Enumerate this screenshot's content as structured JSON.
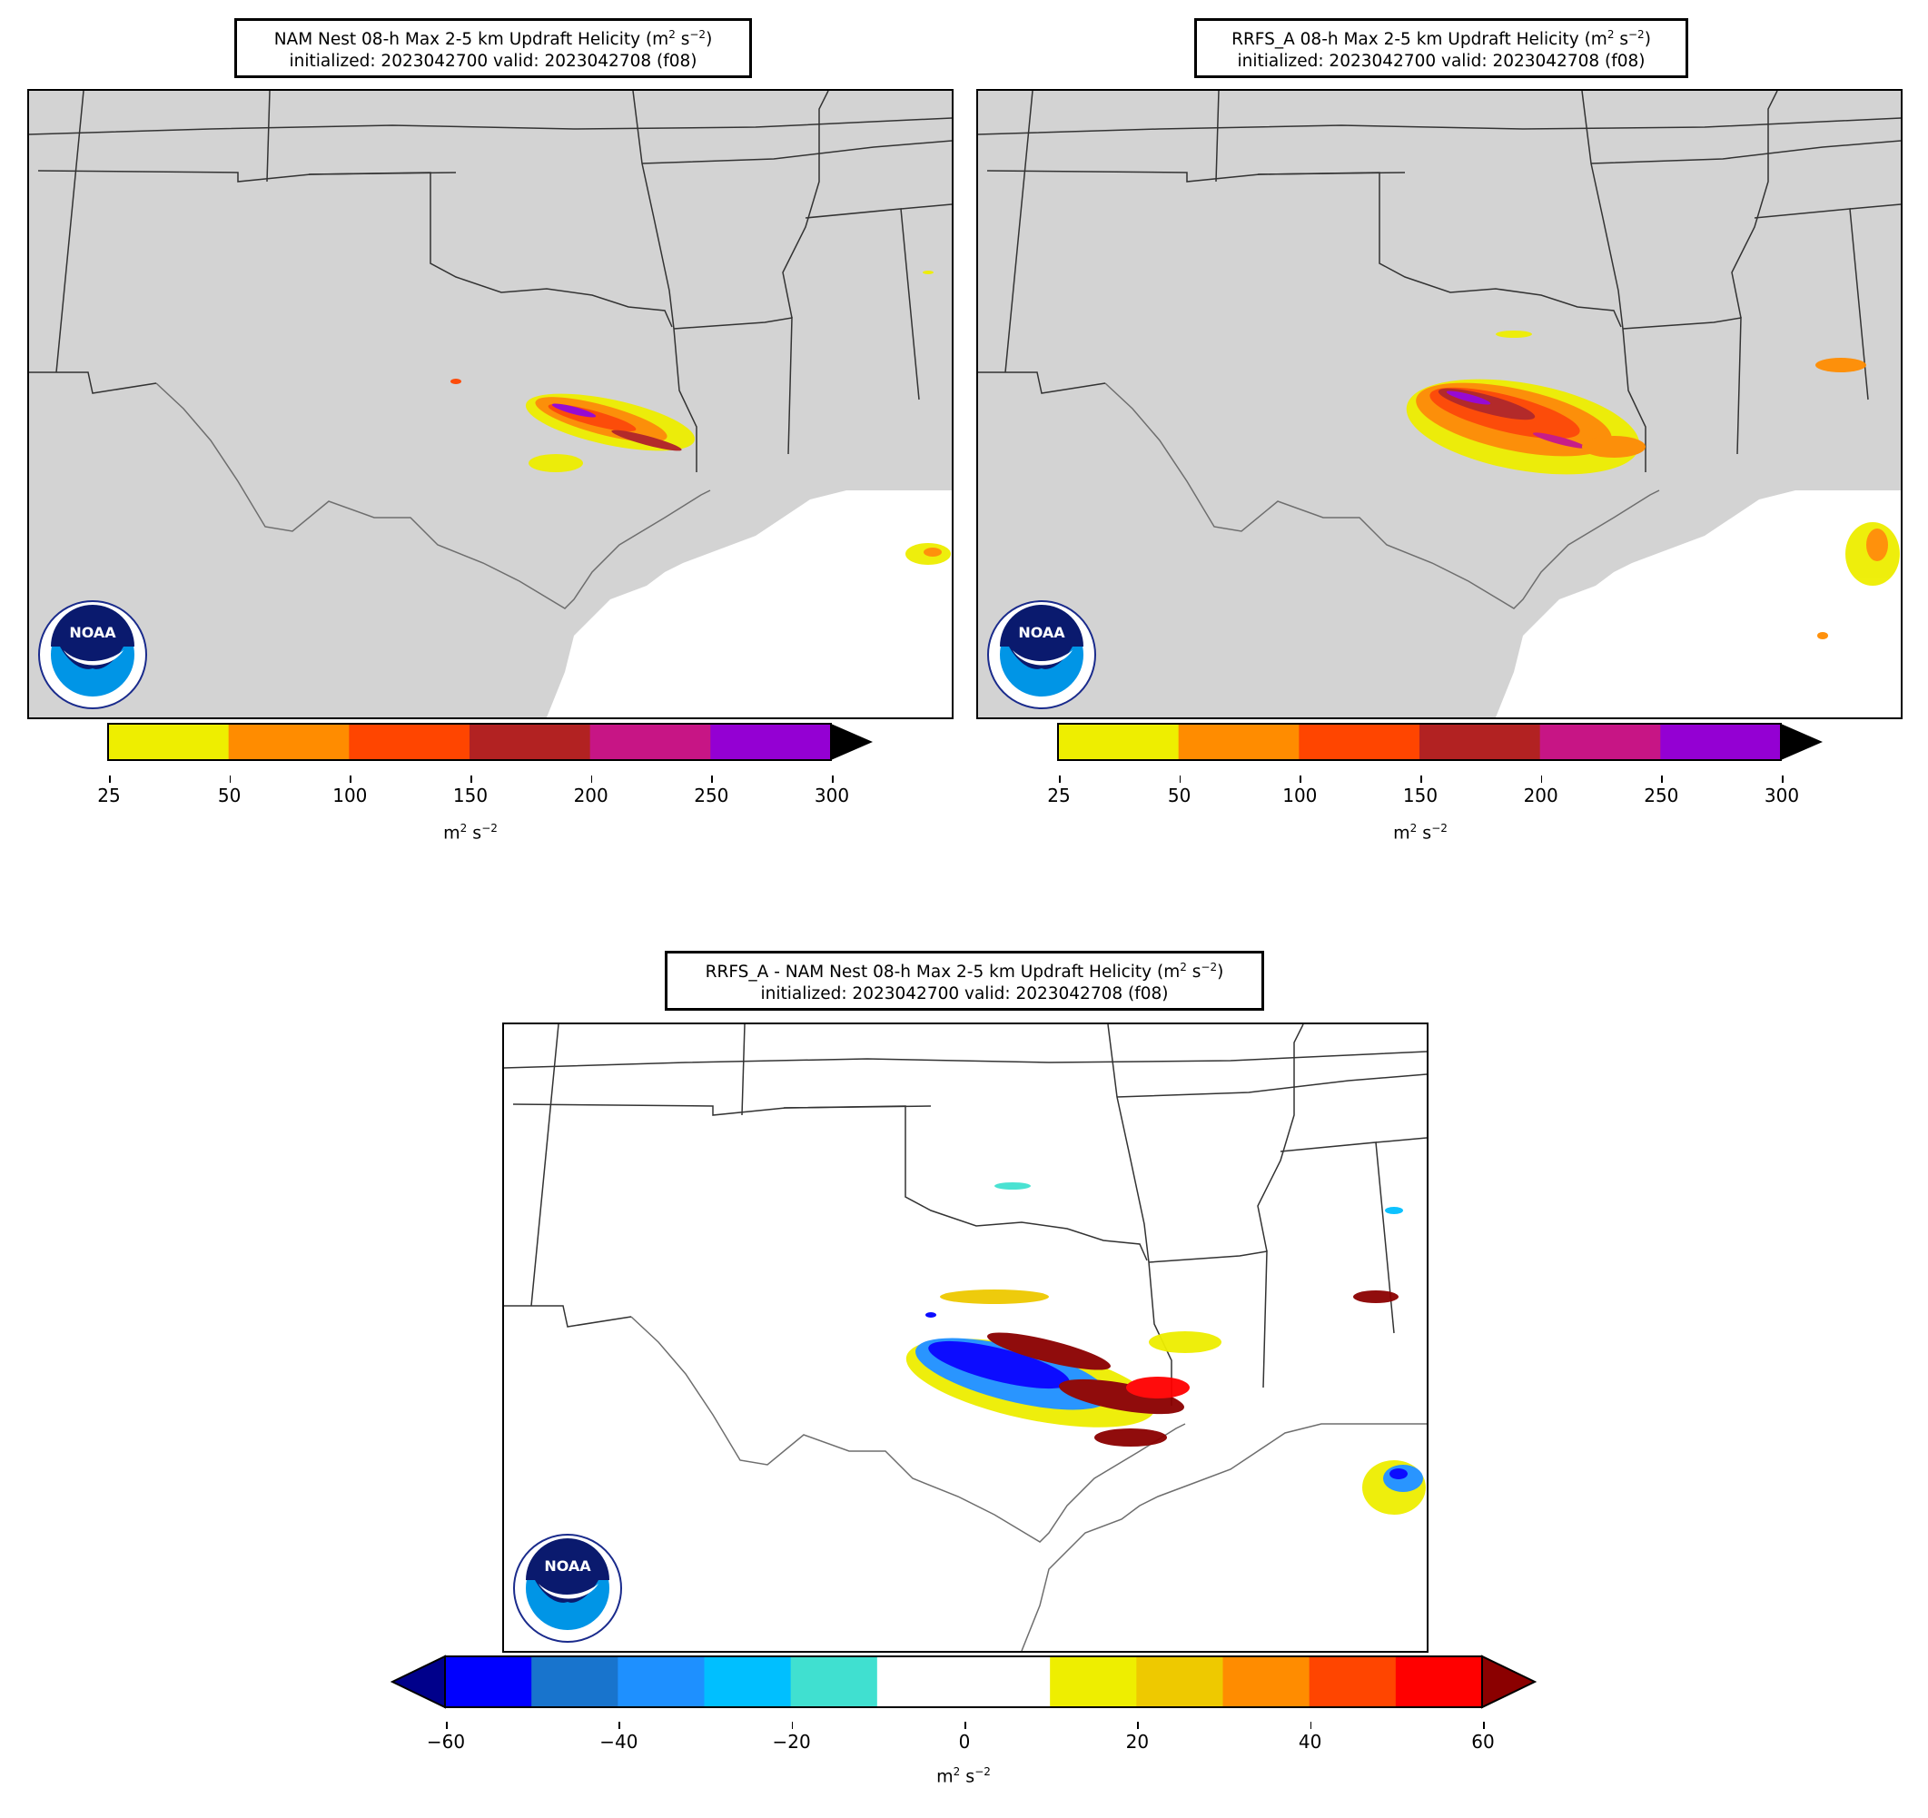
{
  "panels": {
    "nam": {
      "title_line1_prefix": "NAM Nest 08-h Max 2-5 km Updraft Helicity (m",
      "title_line2": "initialized: 2023042700 valid: 2023042708 (f08)"
    },
    "rrfs": {
      "title_line1_prefix": "RRFS_A 08-h Max 2-5 km Updraft Helicity (m",
      "title_line2": "initialized: 2023042700 valid: 2023042708 (f08)"
    },
    "diff": {
      "title_line1_prefix": "RRFS_A - NAM Nest 08-h Max 2-5 km Updraft Helicity (m",
      "title_line2": "initialized: 2023042700 valid: 2023042708 (f08)"
    }
  },
  "title_units": {
    "base": "s",
    "sup_m": "2",
    "sup_s": "−2",
    "close": ")"
  },
  "colorbar_uh": {
    "ticks": [
      "25",
      "50",
      "100",
      "150",
      "200",
      "250",
      "300"
    ],
    "colors": [
      "#eeee00",
      "#ff8c00",
      "#ff4500",
      "#b22222",
      "#c71585",
      "#9400d3"
    ],
    "extend_color": "#000000"
  },
  "colorbar_diff": {
    "ticks": [
      "−60",
      "−40",
      "−20",
      "0",
      "20",
      "40",
      "60"
    ],
    "colors": [
      "#0000ff",
      "#1874cd",
      "#1e90ff",
      "#00bfff",
      "#40e0d0",
      "#ffffff",
      "#ffffff",
      "#eeee00",
      "#eec900",
      "#ff8c00",
      "#ff4500",
      "#ff0000"
    ],
    "extend_low": "#00008b",
    "extend_high": "#8b0000"
  },
  "units_label": {
    "base": "m",
    "sup": "2",
    "base2": " s",
    "sup2": "−2"
  },
  "logo": {
    "text": "NOAA",
    "ring_text": "NATIONAL OCEANIC AND ATMOSPHERIC ADMINISTRATION • U.S. DEPARTMENT OF COMMERCE •"
  },
  "colors": {
    "land": "#d3d3d3",
    "water": "#ffffff",
    "border": "#000000"
  }
}
